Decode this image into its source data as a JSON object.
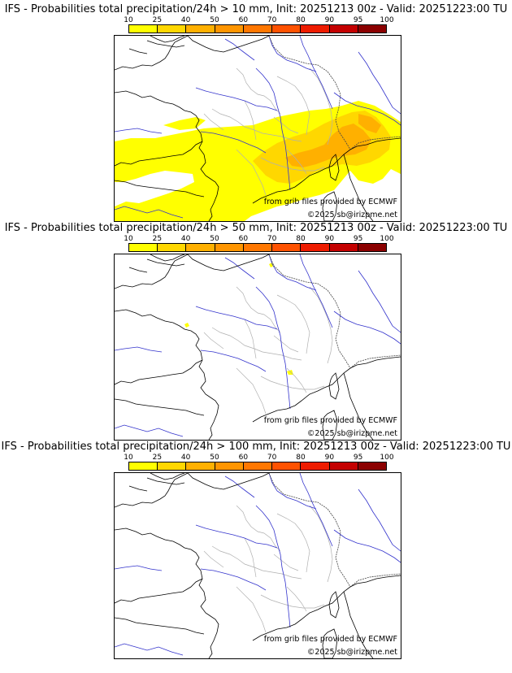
{
  "colorbar": {
    "ticks": [
      "10",
      "25",
      "40",
      "50",
      "60",
      "70",
      "80",
      "90",
      "95",
      "100"
    ],
    "colors": [
      "#ffff00",
      "#ffd700",
      "#ffb000",
      "#ff9500",
      "#ff7700",
      "#ff5200",
      "#ee1c00",
      "#c40000",
      "#8b0000"
    ]
  },
  "panels": [
    {
      "title": "IFS - Probabilities total precipitation/24h > 10 mm, Init: 20251213 00z - Valid: 20251223:00 TU",
      "credit_source": "from grib files provided by ECMWF",
      "credit_copyright": "©2025 sb@irizpme.net",
      "coverage": "wide"
    },
    {
      "title": "IFS - Probabilities total precipitation/24h > 50 mm, Init: 20251213 00z - Valid: 20251223:00 TU",
      "credit_source": "from grib files provided by ECMWF",
      "credit_copyright": "©2025 sb@irizpme.net",
      "coverage": "spots"
    },
    {
      "title": "IFS - Probabilities total precipitation/24h > 100 mm, Init: 20251213 00z - Valid: 20251223:00 TU",
      "credit_source": "from grib files provided by ECMWF",
      "credit_copyright": "©2025 sb@irizpme.net",
      "coverage": "none"
    }
  ]
}
